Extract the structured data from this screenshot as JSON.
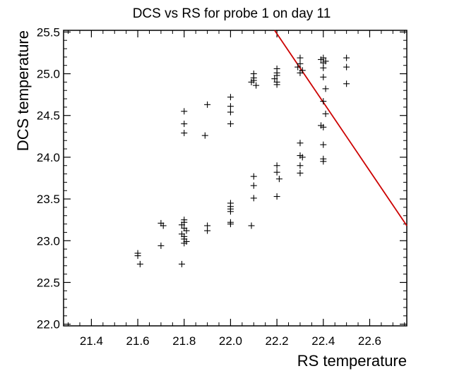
{
  "chart_data": {
    "type": "scatter",
    "title": "DCS vs RS for probe 1 on day 11",
    "xlabel": "RS temperature",
    "ylabel": "DCS temperature",
    "xlim": [
      21.28,
      22.76
    ],
    "ylim": [
      21.98,
      25.52
    ],
    "xticks": [
      "21.4",
      "21.6",
      "21.8",
      "22.0",
      "22.2",
      "22.4",
      "22.6"
    ],
    "yticks": [
      "22.0",
      "22.5",
      "23.0",
      "23.5",
      "24.0",
      "24.5",
      "25.0",
      "25.5"
    ],
    "grid": false,
    "marker": "plus",
    "marker_color": "#000000",
    "line_color": "#cc0000",
    "points": [
      [
        21.6,
        22.85
      ],
      [
        21.6,
        22.82
      ],
      [
        21.61,
        22.72
      ],
      [
        21.7,
        22.94
      ],
      [
        21.7,
        23.21
      ],
      [
        21.71,
        23.18
      ],
      [
        21.8,
        24.55
      ],
      [
        21.8,
        24.4
      ],
      [
        21.8,
        24.29
      ],
      [
        21.8,
        23.25
      ],
      [
        21.8,
        23.22
      ],
      [
        21.79,
        23.19
      ],
      [
        21.8,
        23.15
      ],
      [
        21.81,
        23.12
      ],
      [
        21.79,
        23.08
      ],
      [
        21.8,
        23.05
      ],
      [
        21.8,
        23.02
      ],
      [
        21.81,
        22.99
      ],
      [
        21.8,
        22.97
      ],
      [
        21.79,
        22.72
      ],
      [
        21.9,
        24.63
      ],
      [
        21.89,
        24.26
      ],
      [
        21.9,
        23.18
      ],
      [
        21.9,
        23.12
      ],
      [
        22.0,
        24.72
      ],
      [
        22.0,
        24.61
      ],
      [
        22.0,
        24.54
      ],
      [
        22.0,
        24.4
      ],
      [
        22.0,
        23.45
      ],
      [
        22.0,
        23.41
      ],
      [
        22.0,
        23.38
      ],
      [
        22.0,
        23.35
      ],
      [
        22.0,
        23.22
      ],
      [
        22.0,
        23.2
      ],
      [
        22.1,
        25.0
      ],
      [
        22.1,
        24.95
      ],
      [
        22.1,
        24.92
      ],
      [
        22.09,
        24.9
      ],
      [
        22.11,
        24.86
      ],
      [
        22.1,
        23.77
      ],
      [
        22.1,
        23.66
      ],
      [
        22.1,
        23.51
      ],
      [
        22.09,
        23.18
      ],
      [
        22.2,
        25.06
      ],
      [
        22.2,
        25.01
      ],
      [
        22.2,
        24.98
      ],
      [
        22.19,
        24.94
      ],
      [
        22.2,
        24.9
      ],
      [
        22.2,
        24.87
      ],
      [
        22.2,
        23.9
      ],
      [
        22.2,
        23.82
      ],
      [
        22.21,
        23.74
      ],
      [
        22.2,
        23.53
      ],
      [
        22.3,
        25.19
      ],
      [
        22.3,
        25.12
      ],
      [
        22.29,
        25.08
      ],
      [
        22.31,
        25.04
      ],
      [
        22.3,
        25.01
      ],
      [
        22.3,
        24.17
      ],
      [
        22.3,
        24.02
      ],
      [
        22.31,
        24.0
      ],
      [
        22.3,
        23.9
      ],
      [
        22.3,
        23.81
      ],
      [
        22.4,
        25.19
      ],
      [
        22.39,
        25.17
      ],
      [
        22.41,
        25.15
      ],
      [
        22.4,
        25.13
      ],
      [
        22.4,
        25.07
      ],
      [
        22.4,
        24.96
      ],
      [
        22.41,
        24.82
      ],
      [
        22.4,
        24.67
      ],
      [
        22.41,
        24.52
      ],
      [
        22.39,
        24.38
      ],
      [
        22.4,
        24.36
      ],
      [
        22.4,
        24.15
      ],
      [
        22.4,
        23.98
      ],
      [
        22.4,
        23.95
      ],
      [
        22.5,
        25.19
      ],
      [
        22.5,
        25.08
      ],
      [
        22.5,
        24.88
      ]
    ],
    "fit_line": [
      [
        22.19,
        25.52
      ],
      [
        22.76,
        23.18
      ]
    ]
  }
}
